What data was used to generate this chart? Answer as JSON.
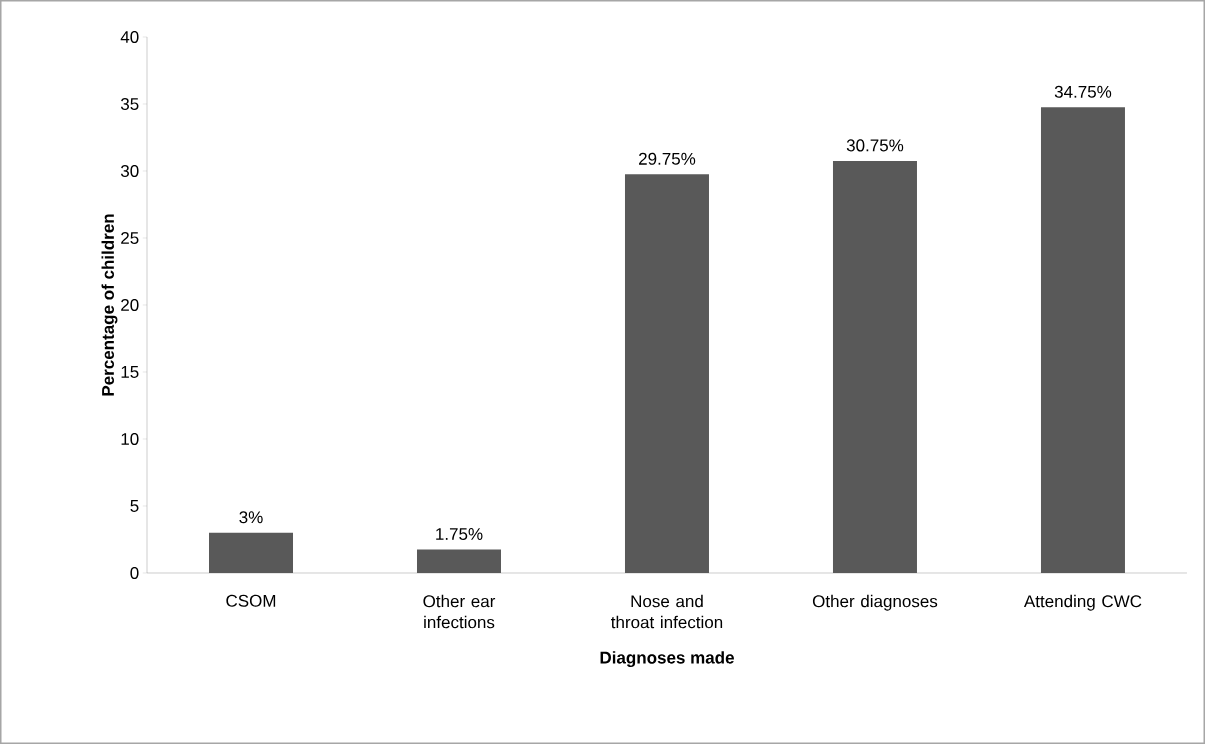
{
  "chart_data": {
    "type": "bar",
    "xlabel": "Diagnoses made",
    "ylabel": "Percentage of children",
    "categories": [
      "CSOM",
      "Other ear infections",
      "Nose and throat infection",
      "Other diagnoses",
      "Attending CWC"
    ],
    "values": [
      3,
      1.75,
      29.75,
      30.75,
      34.75
    ],
    "value_labels": [
      "3%",
      "1.75%",
      "29.75%",
      "30.75%",
      "34.75%"
    ],
    "color": "#595959",
    "ylim": [
      0,
      40
    ],
    "yticks": [
      0,
      5,
      10,
      15,
      20,
      25,
      30,
      35,
      40
    ]
  }
}
